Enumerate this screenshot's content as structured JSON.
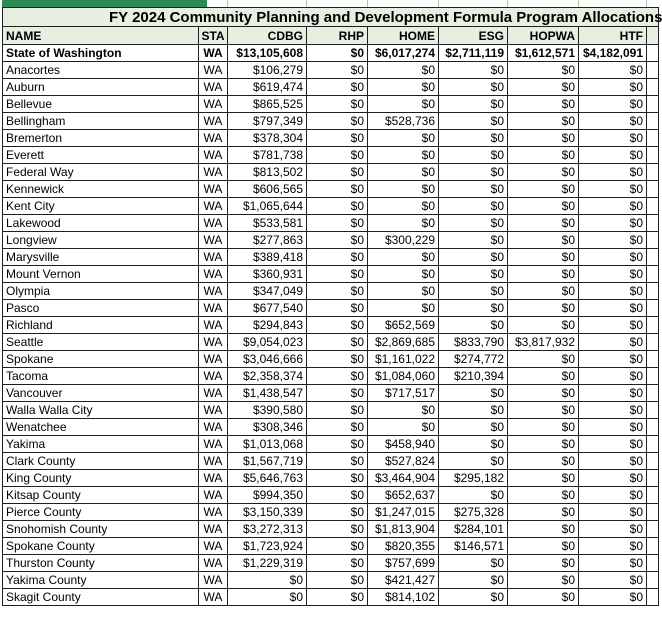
{
  "app": "spreadsheet",
  "colors": {
    "accent_green_bar": "#2f8a57",
    "band_background": "#e7efe0",
    "grid_border": "#1f1f1f"
  },
  "title": "FY 2024 Community Planning and Development Formula Program Allocations",
  "columns": [
    "NAME",
    "STA",
    "CDBG",
    "RHP",
    "HOME",
    "ESG",
    "HOPWA",
    "HTF"
  ],
  "rows": [
    [
      "State of Washington",
      "WA",
      "$13,105,608",
      "$0",
      "$6,017,274",
      "$2,711,119",
      "$1,612,571",
      "$4,182,091"
    ],
    [
      "Anacortes",
      "WA",
      "$106,279",
      "$0",
      "$0",
      "$0",
      "$0",
      "$0"
    ],
    [
      "Auburn",
      "WA",
      "$619,474",
      "$0",
      "$0",
      "$0",
      "$0",
      "$0"
    ],
    [
      "Bellevue",
      "WA",
      "$865,525",
      "$0",
      "$0",
      "$0",
      "$0",
      "$0"
    ],
    [
      "Bellingham",
      "WA",
      "$797,349",
      "$0",
      "$528,736",
      "$0",
      "$0",
      "$0"
    ],
    [
      "Bremerton",
      "WA",
      "$378,304",
      "$0",
      "$0",
      "$0",
      "$0",
      "$0"
    ],
    [
      "Everett",
      "WA",
      "$781,738",
      "$0",
      "$0",
      "$0",
      "$0",
      "$0"
    ],
    [
      "Federal Way",
      "WA",
      "$813,502",
      "$0",
      "$0",
      "$0",
      "$0",
      "$0"
    ],
    [
      "Kennewick",
      "WA",
      "$606,565",
      "$0",
      "$0",
      "$0",
      "$0",
      "$0"
    ],
    [
      "Kent City",
      "WA",
      "$1,065,644",
      "$0",
      "$0",
      "$0",
      "$0",
      "$0"
    ],
    [
      "Lakewood",
      "WA",
      "$533,581",
      "$0",
      "$0",
      "$0",
      "$0",
      "$0"
    ],
    [
      "Longview",
      "WA",
      "$277,863",
      "$0",
      "$300,229",
      "$0",
      "$0",
      "$0"
    ],
    [
      "Marysville",
      "WA",
      "$389,418",
      "$0",
      "$0",
      "$0",
      "$0",
      "$0"
    ],
    [
      "Mount Vernon",
      "WA",
      "$360,931",
      "$0",
      "$0",
      "$0",
      "$0",
      "$0"
    ],
    [
      "Olympia",
      "WA",
      "$347,049",
      "$0",
      "$0",
      "$0",
      "$0",
      "$0"
    ],
    [
      "Pasco",
      "WA",
      "$677,540",
      "$0",
      "$0",
      "$0",
      "$0",
      "$0"
    ],
    [
      "Richland",
      "WA",
      "$294,843",
      "$0",
      "$652,569",
      "$0",
      "$0",
      "$0"
    ],
    [
      "Seattle",
      "WA",
      "$9,054,023",
      "$0",
      "$2,869,685",
      "$833,790",
      "$3,817,932",
      "$0"
    ],
    [
      "Spokane",
      "WA",
      "$3,046,666",
      "$0",
      "$1,161,022",
      "$274,772",
      "$0",
      "$0"
    ],
    [
      "Tacoma",
      "WA",
      "$2,358,374",
      "$0",
      "$1,084,060",
      "$210,394",
      "$0",
      "$0"
    ],
    [
      "Vancouver",
      "WA",
      "$1,438,547",
      "$0",
      "$717,517",
      "$0",
      "$0",
      "$0"
    ],
    [
      "Walla Walla City",
      "WA",
      "$390,580",
      "$0",
      "$0",
      "$0",
      "$0",
      "$0"
    ],
    [
      "Wenatchee",
      "WA",
      "$308,346",
      "$0",
      "$0",
      "$0",
      "$0",
      "$0"
    ],
    [
      "Yakima",
      "WA",
      "$1,013,068",
      "$0",
      "$458,940",
      "$0",
      "$0",
      "$0"
    ],
    [
      "Clark County",
      "WA",
      "$1,567,719",
      "$0",
      "$527,824",
      "$0",
      "$0",
      "$0"
    ],
    [
      "King County",
      "WA",
      "$5,646,763",
      "$0",
      "$3,464,904",
      "$295,182",
      "$0",
      "$0"
    ],
    [
      "Kitsap County",
      "WA",
      "$994,350",
      "$0",
      "$652,637",
      "$0",
      "$0",
      "$0"
    ],
    [
      "Pierce County",
      "WA",
      "$3,150,339",
      "$0",
      "$1,247,015",
      "$275,328",
      "$0",
      "$0"
    ],
    [
      "Snohomish County",
      "WA",
      "$3,272,313",
      "$0",
      "$1,813,904",
      "$284,101",
      "$0",
      "$0"
    ],
    [
      "Spokane County",
      "WA",
      "$1,723,924",
      "$0",
      "$820,355",
      "$146,571",
      "$0",
      "$0"
    ],
    [
      "Thurston County",
      "WA",
      "$1,229,319",
      "$0",
      "$757,699",
      "$0",
      "$0",
      "$0"
    ],
    [
      "Yakima County",
      "WA",
      "$0",
      "$0",
      "$421,427",
      "$0",
      "$0",
      "$0"
    ],
    [
      "Skagit County",
      "WA",
      "$0",
      "$0",
      "$814,102",
      "$0",
      "$0",
      "$0"
    ]
  ]
}
